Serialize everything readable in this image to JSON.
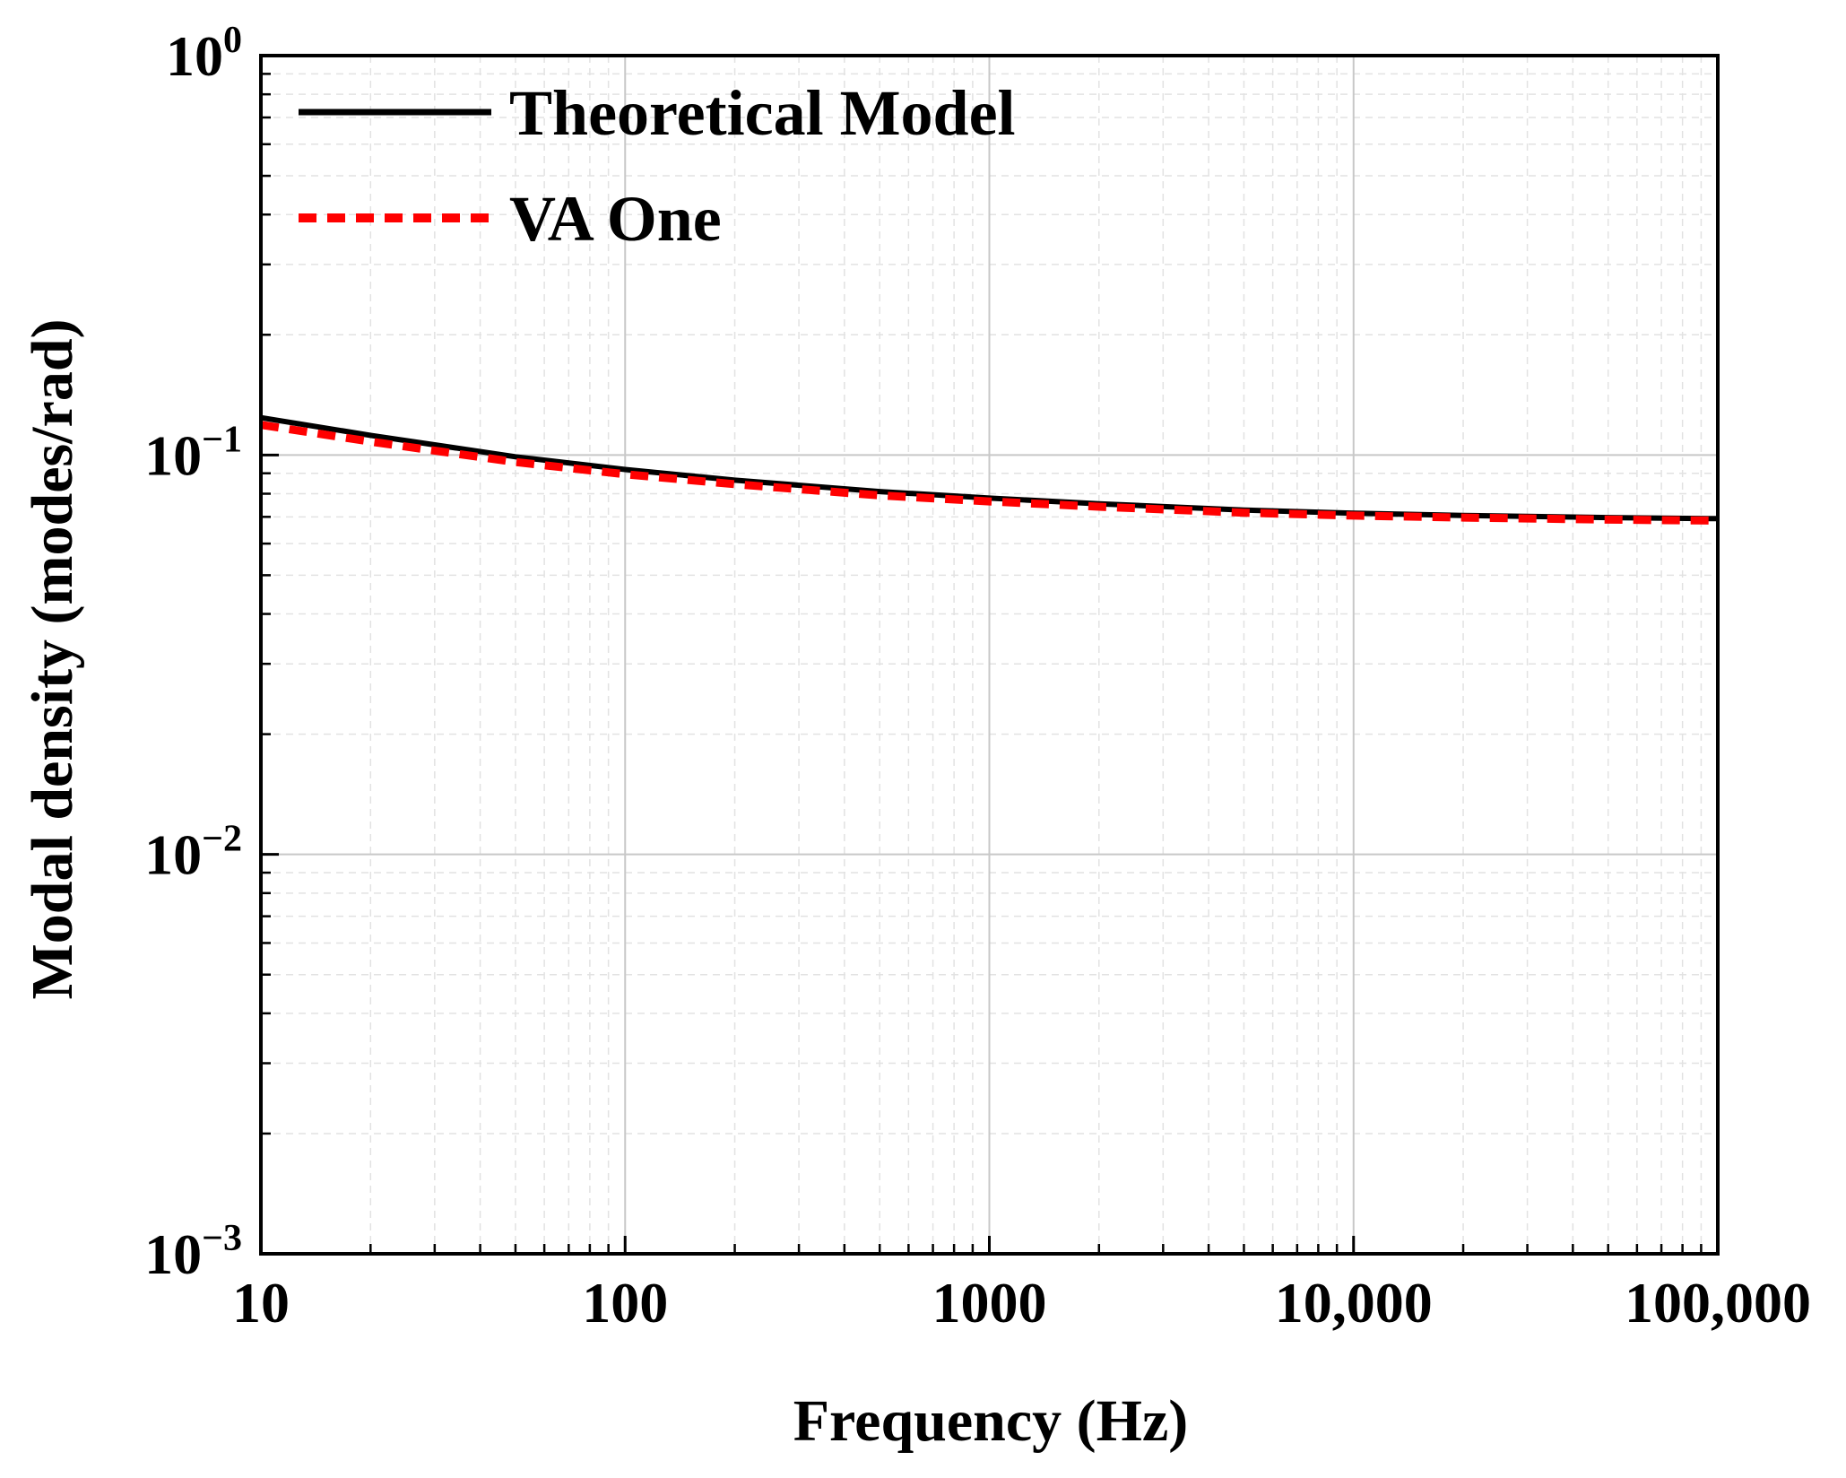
{
  "chart_data": {
    "type": "line",
    "title": "",
    "xlabel": "Frequency (Hz)",
    "ylabel": "Modal density (modes/rad)",
    "xscale": "log",
    "yscale": "log",
    "xlim": [
      10,
      100000
    ],
    "ylim": [
      0.001,
      1
    ],
    "grid": true,
    "legend_position": "top-left",
    "x_ticks": [
      {
        "value": 10,
        "label": "10"
      },
      {
        "value": 100,
        "label": "100"
      },
      {
        "value": 1000,
        "label": "1000"
      },
      {
        "value": 10000,
        "label": "10,000"
      },
      {
        "value": 100000,
        "label": "100,000"
      }
    ],
    "y_ticks": [
      {
        "value": 1,
        "base": "10",
        "exp": "0"
      },
      {
        "value": 0.1,
        "base": "10",
        "exp": "−1"
      },
      {
        "value": 0.01,
        "base": "10",
        "exp": "−2"
      },
      {
        "value": 0.001,
        "base": "10",
        "exp": "−3"
      }
    ],
    "series": [
      {
        "name": "Theoretical Model",
        "color": "#000000",
        "style": "solid",
        "x": [
          10,
          20,
          50,
          100,
          200,
          500,
          1000,
          2000,
          5000,
          10000,
          20000,
          50000,
          100000
        ],
        "y": [
          0.124,
          0.112,
          0.099,
          0.092,
          0.0865,
          0.081,
          0.078,
          0.0755,
          0.0728,
          0.0715,
          0.0706,
          0.0697,
          0.0693
        ]
      },
      {
        "name": "VA One",
        "color": "#ff0000",
        "style": "dashed",
        "x": [
          10,
          20,
          50,
          100,
          200,
          500,
          1000,
          2000,
          5000,
          10000,
          20000,
          50000,
          100000
        ],
        "y": [
          0.119,
          0.108,
          0.096,
          0.0895,
          0.0845,
          0.0792,
          0.0765,
          0.0742,
          0.0717,
          0.0705,
          0.0697,
          0.0689,
          0.0685
        ]
      }
    ]
  }
}
